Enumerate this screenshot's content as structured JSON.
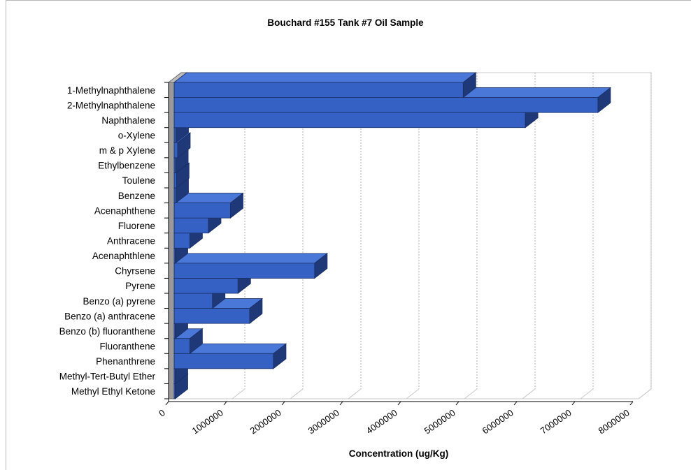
{
  "chart_data": {
    "type": "bar",
    "orientation": "horizontal",
    "style": "3d",
    "title": "Bouchard #155 Tank #7 Oil Sample",
    "xlabel": "Concentration (ug/Kg)",
    "ylabel": "",
    "xlim": [
      0,
      8000000
    ],
    "xticks": [
      "0",
      "1000000",
      "2000000",
      "3000000",
      "4000000",
      "5000000",
      "6000000",
      "7000000",
      "8000000"
    ],
    "grid": "vertical dashed",
    "legend": "none",
    "categories": [
      "1-Methylnaphthalene",
      "2-Methylnaphthalene",
      "Naphthalene",
      "o-Xylene",
      "m & p Xylene",
      "Ethylbenzene",
      "Toulene",
      "Benzene",
      "Acenaphthene",
      "Fluorene",
      "Anthracene",
      "Acenaphthlene",
      "Chyrsene",
      "Pyrene",
      "Benzo (a) pyrene",
      "Benzo (a) anthracene",
      "Benzo (b) fluoranthene",
      "Fluoranthene",
      "Phenanthrene",
      "Methyl-Tert-Butyl Ether",
      "Methyl Ethyl Ketone"
    ],
    "values": [
      4980000,
      7300000,
      6050000,
      30000,
      60000,
      25000,
      40000,
      30000,
      970000,
      590000,
      270000,
      15000,
      2420000,
      1100000,
      660000,
      1300000,
      10000,
      270000,
      1710000,
      10000,
      10000
    ],
    "colors": {
      "bar_front": "#3560c4",
      "bar_top": "#4a78d8",
      "bar_side": "#1e3878",
      "bar_edge": "#1a2f66",
      "wall": "#9a9a9a",
      "grid": "#b0b0b0"
    }
  }
}
